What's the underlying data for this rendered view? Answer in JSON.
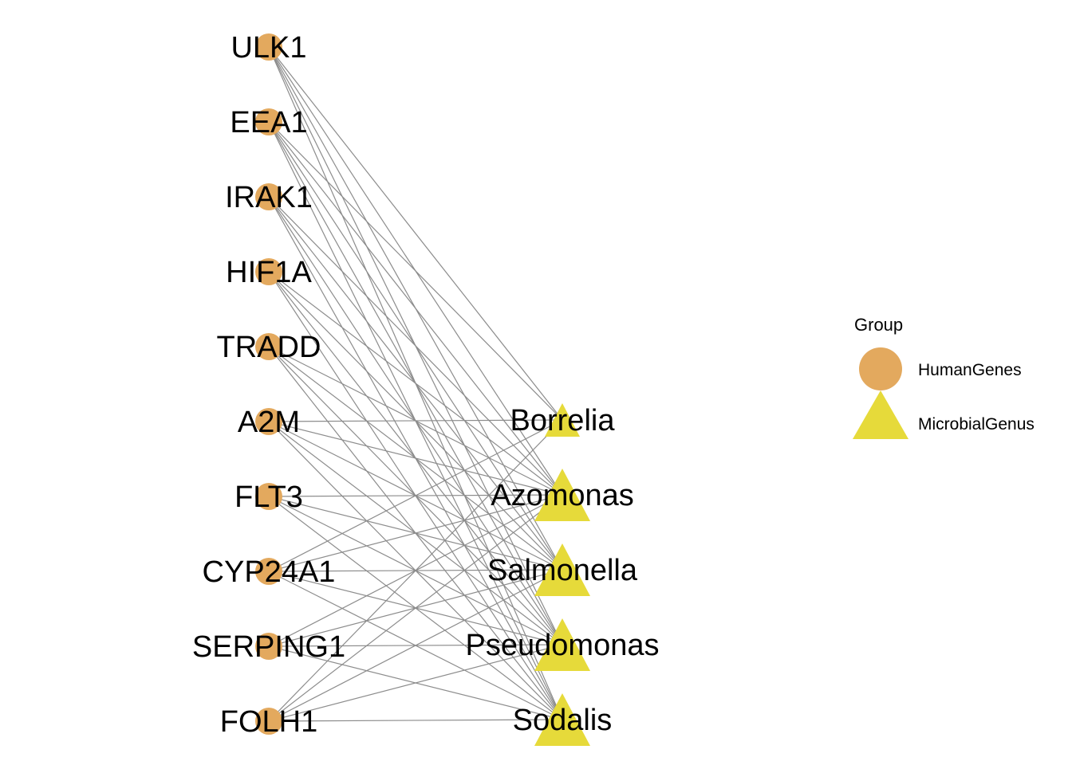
{
  "colors": {
    "human": "#E3A95E",
    "microbe": "#E6DA3A",
    "edge": "#8C8C8C"
  },
  "human_genes": [
    "ULK1",
    "EEA1",
    "IRAK1",
    "HIF1A",
    "TRADD",
    "A2M",
    "FLT3",
    "CYP24A1",
    "SERPING1",
    "FOLH1"
  ],
  "microbial_genera": [
    {
      "name": "Borrelia",
      "size": 1
    },
    {
      "name": "Azomonas",
      "size": 2
    },
    {
      "name": "Salmonella",
      "size": 2
    },
    {
      "name": "Pseudomonas",
      "size": 2
    },
    {
      "name": "Sodalis",
      "size": 2
    }
  ],
  "edges": [
    [
      "ULK1",
      "Borrelia"
    ],
    [
      "ULK1",
      "Azomonas"
    ],
    [
      "ULK1",
      "Salmonella"
    ],
    [
      "ULK1",
      "Pseudomonas"
    ],
    [
      "ULK1",
      "Sodalis"
    ],
    [
      "EEA1",
      "Borrelia"
    ],
    [
      "EEA1",
      "Azomonas"
    ],
    [
      "EEA1",
      "Salmonella"
    ],
    [
      "EEA1",
      "Pseudomonas"
    ],
    [
      "EEA1",
      "Sodalis"
    ],
    [
      "IRAK1",
      "Azomonas"
    ],
    [
      "IRAK1",
      "Salmonella"
    ],
    [
      "IRAK1",
      "Pseudomonas"
    ],
    [
      "IRAK1",
      "Sodalis"
    ],
    [
      "HIF1A",
      "Azomonas"
    ],
    [
      "HIF1A",
      "Salmonella"
    ],
    [
      "HIF1A",
      "Pseudomonas"
    ],
    [
      "HIF1A",
      "Sodalis"
    ],
    [
      "TRADD",
      "Azomonas"
    ],
    [
      "TRADD",
      "Salmonella"
    ],
    [
      "TRADD",
      "Pseudomonas"
    ],
    [
      "TRADD",
      "Sodalis"
    ],
    [
      "A2M",
      "Borrelia"
    ],
    [
      "A2M",
      "Azomonas"
    ],
    [
      "A2M",
      "Salmonella"
    ],
    [
      "A2M",
      "Pseudomonas"
    ],
    [
      "A2M",
      "Sodalis"
    ],
    [
      "FLT3",
      "Azomonas"
    ],
    [
      "FLT3",
      "Salmonella"
    ],
    [
      "FLT3",
      "Pseudomonas"
    ],
    [
      "FLT3",
      "Sodalis"
    ],
    [
      "CYP24A1",
      "Borrelia"
    ],
    [
      "CYP24A1",
      "Azomonas"
    ],
    [
      "CYP24A1",
      "Salmonella"
    ],
    [
      "CYP24A1",
      "Pseudomonas"
    ],
    [
      "CYP24A1",
      "Sodalis"
    ],
    [
      "SERPING1",
      "Azomonas"
    ],
    [
      "SERPING1",
      "Salmonella"
    ],
    [
      "SERPING1",
      "Pseudomonas"
    ],
    [
      "SERPING1",
      "Sodalis"
    ],
    [
      "FOLH1",
      "Borrelia"
    ],
    [
      "FOLH1",
      "Azomonas"
    ],
    [
      "FOLH1",
      "Salmonella"
    ],
    [
      "FOLH1",
      "Pseudomonas"
    ],
    [
      "FOLH1",
      "Sodalis"
    ]
  ],
  "legend": {
    "title": "Group",
    "items": [
      {
        "label": "HumanGenes",
        "shape": "circle"
      },
      {
        "label": "MicrobialGenus",
        "shape": "triangle"
      }
    ]
  }
}
